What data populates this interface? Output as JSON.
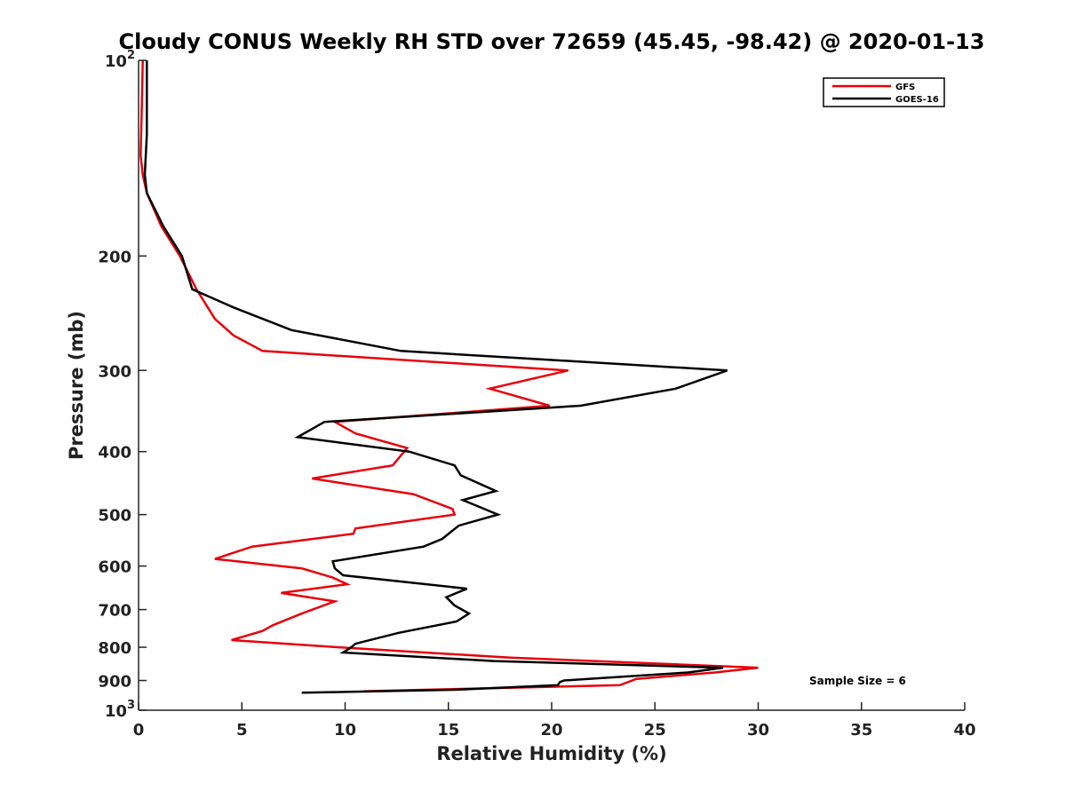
{
  "chart_data": {
    "type": "line",
    "title": "Cloudy CONUS Weekly RH STD over 72659 (45.45, -98.42) @ 2020-01-13",
    "xlabel": "Relative Humidity (%)",
    "ylabel": "Pressure (mb)",
    "xlim": [
      0,
      40
    ],
    "ylim": [
      100,
      1000
    ],
    "y_scale": "log",
    "y_reversed": true,
    "grid": false,
    "legend_position": "top-right",
    "x_ticks": [
      "0",
      "5",
      "10",
      "15",
      "20",
      "25",
      "30",
      "35",
      "40"
    ],
    "y_ticks": [
      {
        "value": 100,
        "base": "10",
        "exp": "2"
      },
      {
        "value": 200,
        "label": "200"
      },
      {
        "value": 300,
        "label": "300"
      },
      {
        "value": 400,
        "label": "400"
      },
      {
        "value": 500,
        "label": "500"
      },
      {
        "value": 600,
        "label": "600"
      },
      {
        "value": 700,
        "label": "700"
      },
      {
        "value": 800,
        "label": "800"
      },
      {
        "value": 900,
        "label": "900"
      },
      {
        "value": 1000,
        "base": "10",
        "exp": "3"
      }
    ],
    "series": [
      {
        "name": "GFS",
        "color": "#e8000b",
        "points": [
          [
            0.2,
            100
          ],
          [
            0.15,
            120
          ],
          [
            0.1,
            140
          ],
          [
            0.2,
            150
          ],
          [
            0.4,
            160
          ],
          [
            1.1,
            180
          ],
          [
            2.0,
            200
          ],
          [
            2.8,
            225
          ],
          [
            3.7,
            250
          ],
          [
            4.6,
            265
          ],
          [
            6.0,
            280
          ],
          [
            20.8,
            300
          ],
          [
            17.0,
            320
          ],
          [
            19.9,
            340
          ],
          [
            9.5,
            360
          ],
          [
            10.5,
            375
          ],
          [
            13.0,
            395
          ],
          [
            12.3,
            420
          ],
          [
            8.4,
            440
          ],
          [
            13.3,
            465
          ],
          [
            15.2,
            490
          ],
          [
            15.3,
            500
          ],
          [
            10.5,
            525
          ],
          [
            10.4,
            535
          ],
          [
            5.5,
            560
          ],
          [
            3.7,
            585
          ],
          [
            7.9,
            605
          ],
          [
            9.4,
            625
          ],
          [
            10.1,
            640
          ],
          [
            6.9,
            660
          ],
          [
            9.5,
            680
          ],
          [
            7.9,
            710
          ],
          [
            6.5,
            740
          ],
          [
            6.0,
            755
          ],
          [
            4.5,
            780
          ],
          [
            9.7,
            800
          ],
          [
            18.0,
            830
          ],
          [
            30.0,
            860
          ],
          [
            27.9,
            875
          ],
          [
            24.1,
            895
          ],
          [
            23.9,
            900
          ],
          [
            23.3,
            915
          ],
          [
            10.9,
            935
          ]
        ]
      },
      {
        "name": "GOES-16",
        "color": "#000000",
        "points": [
          [
            0.4,
            100
          ],
          [
            0.4,
            115
          ],
          [
            0.4,
            130
          ],
          [
            0.3,
            150
          ],
          [
            0.4,
            160
          ],
          [
            1.2,
            180
          ],
          [
            2.1,
            200
          ],
          [
            2.6,
            225
          ],
          [
            4.6,
            240
          ],
          [
            7.4,
            260
          ],
          [
            12.7,
            280
          ],
          [
            28.5,
            300
          ],
          [
            26.0,
            320
          ],
          [
            21.4,
            340
          ],
          [
            9.0,
            360
          ],
          [
            7.7,
            380
          ],
          [
            13.1,
            400
          ],
          [
            15.3,
            420
          ],
          [
            15.6,
            435
          ],
          [
            17.3,
            460
          ],
          [
            15.7,
            475
          ],
          [
            17.4,
            500
          ],
          [
            15.5,
            520
          ],
          [
            14.7,
            545
          ],
          [
            13.8,
            560
          ],
          [
            9.4,
            590
          ],
          [
            9.5,
            605
          ],
          [
            9.9,
            620
          ],
          [
            15.9,
            650
          ],
          [
            14.9,
            670
          ],
          [
            15.3,
            690
          ],
          [
            16.0,
            710
          ],
          [
            15.4,
            730
          ],
          [
            12.6,
            760
          ],
          [
            10.5,
            790
          ],
          [
            10.3,
            800
          ],
          [
            9.9,
            815
          ],
          [
            17.2,
            840
          ],
          [
            28.3,
            860
          ],
          [
            26.6,
            875
          ],
          [
            20.6,
            900
          ],
          [
            20.4,
            905
          ],
          [
            20.3,
            915
          ],
          [
            15.4,
            930
          ],
          [
            7.9,
            940
          ]
        ]
      }
    ],
    "annotations": [
      "Sample Size = 6"
    ]
  }
}
